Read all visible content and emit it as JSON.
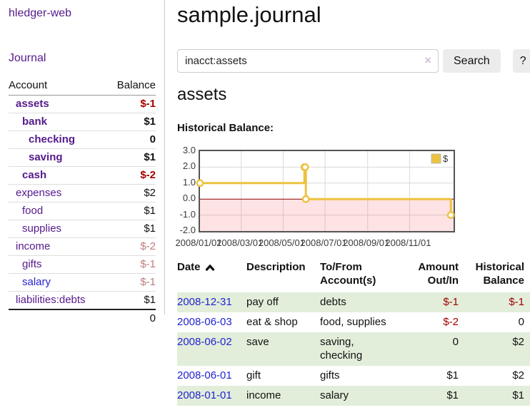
{
  "app": {
    "title": "hledger-web"
  },
  "sidebar": {
    "journal_label": "Journal",
    "accounts": {
      "headers": [
        "Account",
        "Balance"
      ],
      "rows": [
        {
          "name": "assets",
          "balance": "$-1",
          "level": 1,
          "bold": true,
          "neg": "strong"
        },
        {
          "name": "bank",
          "balance": "$1",
          "level": 2,
          "bold": true
        },
        {
          "name": "checking",
          "balance": "0",
          "level": 3,
          "bold": true
        },
        {
          "name": "saving",
          "balance": "$1",
          "level": 3,
          "bold": true
        },
        {
          "name": "cash",
          "balance": "$-2",
          "level": 2,
          "bold": true,
          "neg": "strong"
        },
        {
          "name": "expenses",
          "balance": "$2",
          "level": 1
        },
        {
          "name": "food",
          "balance": "$1",
          "level": 2
        },
        {
          "name": "supplies",
          "balance": "$1",
          "level": 2
        },
        {
          "name": "income",
          "balance": "$-2",
          "level": 1,
          "neg": "soft"
        },
        {
          "name": "gifts",
          "balance": "$-1",
          "level": 2,
          "neg": "soft"
        },
        {
          "name": "salary",
          "balance": "$-1",
          "level": 2,
          "neg": "soft",
          "blue": true
        },
        {
          "name": "liabilities:debts",
          "balance": "$1",
          "level": 1
        }
      ],
      "total": "0"
    }
  },
  "header": {
    "title": "sample.journal"
  },
  "search": {
    "value": "inacct:assets",
    "clear_icon": "×",
    "button_label": "Search",
    "help_label": "?"
  },
  "account_view": {
    "heading": "assets",
    "chart_label": "Historical Balance:"
  },
  "chart_data": {
    "type": "line",
    "step": true,
    "title": "Historical Balance",
    "ylabel": "",
    "xlabel": "",
    "ylim": [
      -2,
      3
    ],
    "yticks": [
      3,
      2,
      1,
      0,
      -1,
      -2
    ],
    "xlim": [
      "2008-01-01",
      "2009-01-04"
    ],
    "xticks": [
      {
        "date": "2008-01-01",
        "label": "2008/01/01"
      },
      {
        "date": "2008-03-01",
        "label": "2008/03/01"
      },
      {
        "date": "2008-05-01",
        "label": "2008/05/01"
      },
      {
        "date": "2008-07-01",
        "label": "2008/07/01"
      },
      {
        "date": "2008-09-01",
        "label": "2008/09/01"
      },
      {
        "date": "2008-11-01",
        "label": "2008/11/01"
      }
    ],
    "grid": true,
    "legend_position": "top-right",
    "series": [
      {
        "name": "$",
        "color": "#edc240",
        "points": [
          {
            "date": "2008-01-01",
            "value": 1
          },
          {
            "date": "2008-06-01",
            "value": 2
          },
          {
            "date": "2008-06-02",
            "value": 2
          },
          {
            "date": "2008-06-03",
            "value": 0
          },
          {
            "date": "2008-12-31",
            "value": -1
          }
        ]
      }
    ],
    "negative_fill": "rgba(244,80,80,0.16)",
    "zero_line_color": "#8b0000",
    "grid_color": "#d9d9d9",
    "border_color": "#545454"
  },
  "register": {
    "headers": [
      {
        "lines": [
          "Date"
        ],
        "sort": "ascending"
      },
      {
        "lines": [
          "Description"
        ]
      },
      {
        "lines": [
          "To/From",
          "Account(s)"
        ]
      },
      {
        "lines": [
          "Amount",
          "Out/In"
        ]
      },
      {
        "lines": [
          "Historical",
          "Balance"
        ]
      }
    ],
    "rows": [
      {
        "date": "2008-12-31",
        "description": "pay off",
        "accounts": "debts",
        "amount": "$-1",
        "amount_neg": true,
        "balance": "$-1",
        "balance_neg": true,
        "shaded": true
      },
      {
        "date": "2008-06-03",
        "description": "eat & shop",
        "accounts": "food, supplies",
        "amount": "$-2",
        "amount_neg": true,
        "balance": "0",
        "balance_neg": false,
        "shaded": false
      },
      {
        "date": "2008-06-02",
        "description": "save",
        "accounts": "saving, checking",
        "amount": "0",
        "amount_neg": false,
        "balance": "$2",
        "balance_neg": false,
        "shaded": true
      },
      {
        "date": "2008-06-01",
        "description": "gift",
        "accounts": "gifts",
        "amount": "$1",
        "amount_neg": false,
        "balance": "$2",
        "balance_neg": false,
        "shaded": false
      },
      {
        "date": "2008-01-01",
        "description": "income",
        "accounts": "salary",
        "amount": "$1",
        "amount_neg": false,
        "balance": "$1",
        "balance_neg": false,
        "shaded": true
      }
    ]
  },
  "colors": {
    "link_purple": "#551a8b",
    "link_blue": "#2323d2",
    "negative_strong": "#a40000",
    "negative_soft": "#bd7b7b",
    "row_shade_green": "#e2eeda",
    "button_bg": "#ececec",
    "chart_line_yellow": "#edc240",
    "chart_zero_line": "#8b0000",
    "chart_border": "#545454"
  }
}
